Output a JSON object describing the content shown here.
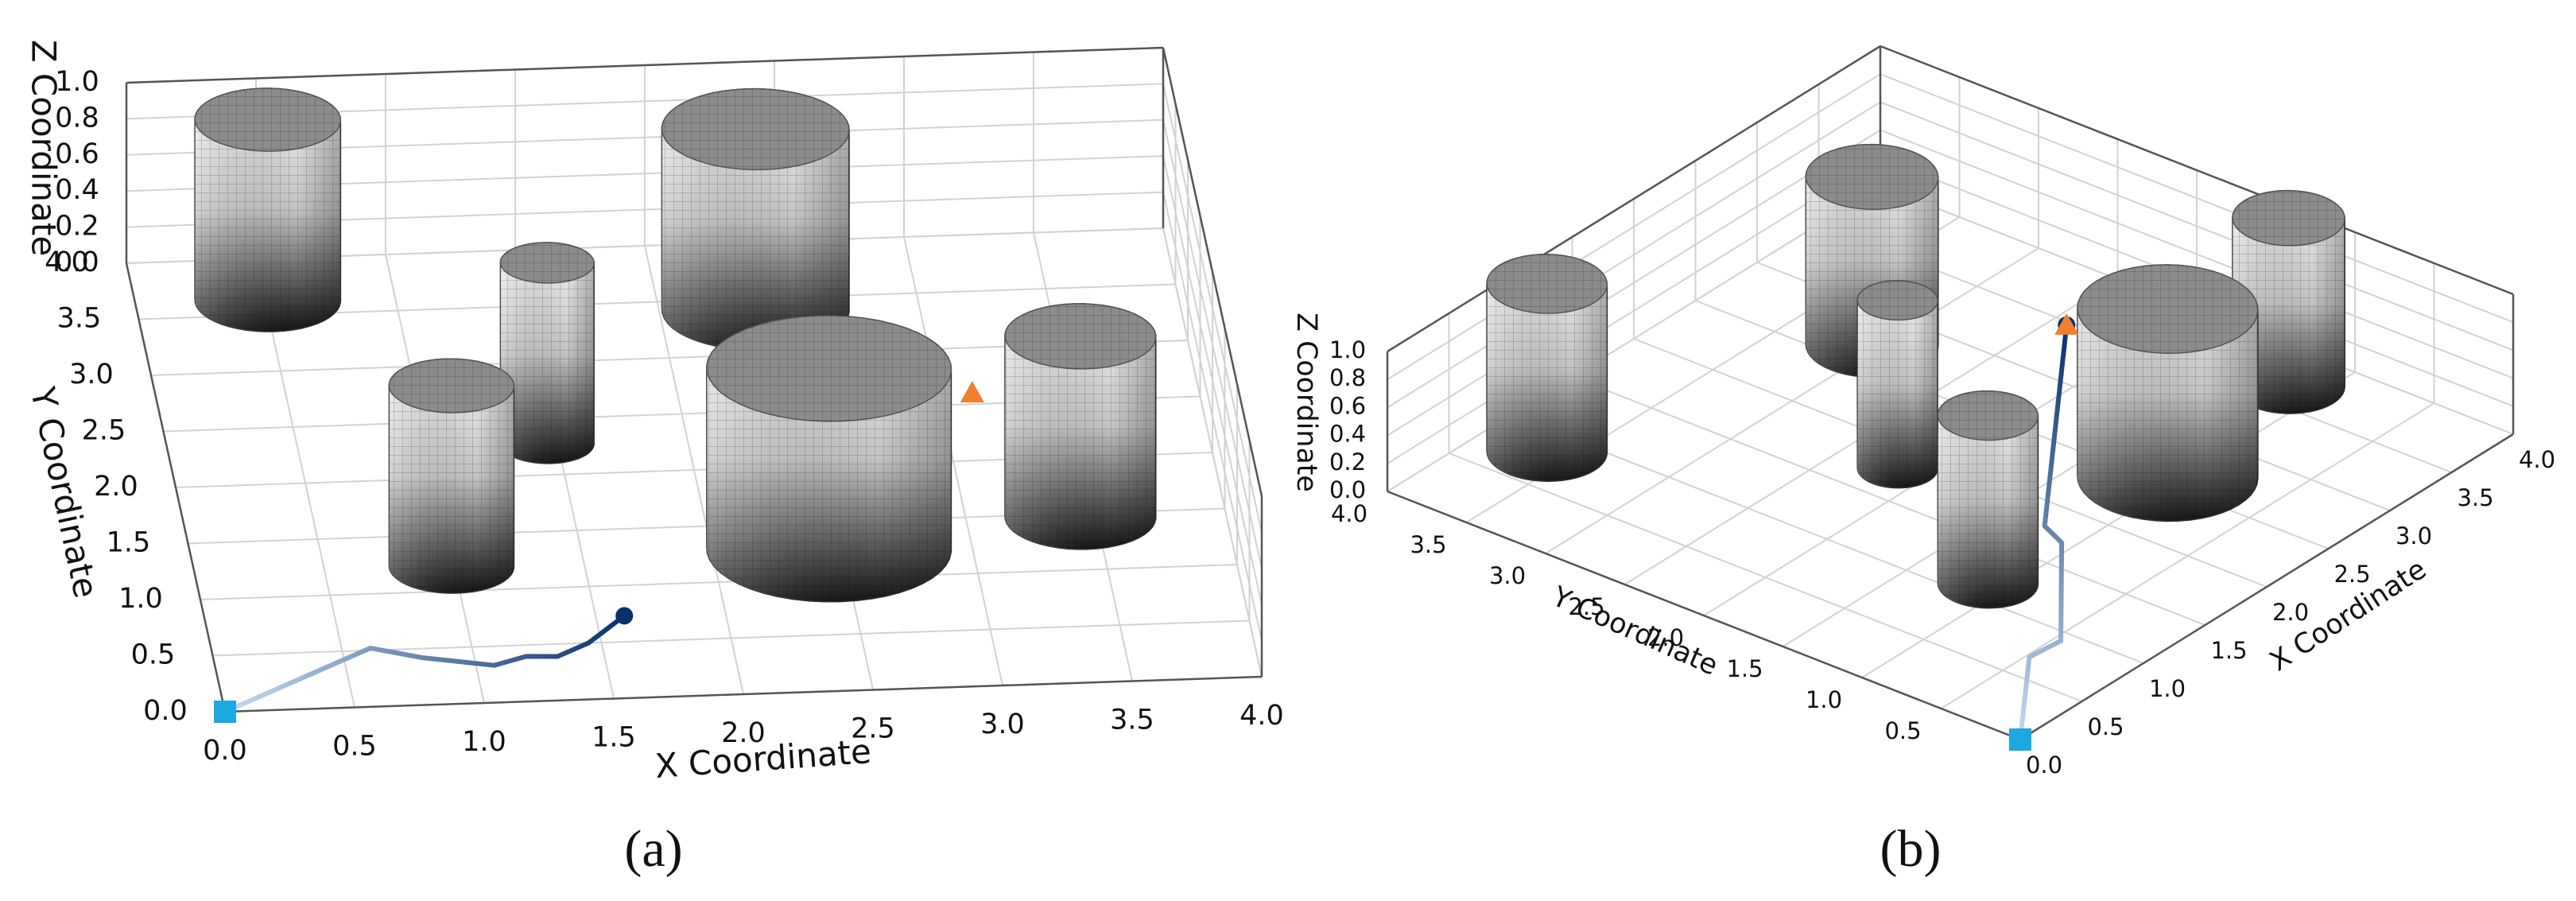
{
  "chart_data": [
    {
      "type": "cylinders3d",
      "caption": "(a)",
      "xlabel": "X Coordinate",
      "ylabel": "Y Coordinate",
      "zlabel": "Z Coordinate",
      "xlim": [
        0,
        4
      ],
      "ylim": [
        0,
        4
      ],
      "zlim": [
        0,
        1
      ],
      "xticks": [
        {
          "value": 0,
          "label": "0.0"
        },
        0.5,
        {
          "value": 1,
          "label": "1.0"
        },
        1.5,
        {
          "value": 2,
          "label": "2.0"
        },
        2.5,
        {
          "value": 3,
          "label": "3.0"
        },
        3.5,
        {
          "value": 4,
          "label": "4.0"
        }
      ],
      "yticks": [
        {
          "value": 0,
          "label": "0.0"
        },
        0.5,
        {
          "value": 1,
          "label": "1.0"
        },
        1.5,
        {
          "value": 2,
          "label": "2.0"
        },
        2.5,
        {
          "value": 3,
          "label": "3.0"
        },
        3.5,
        {
          "value": 4,
          "label": "4.0"
        }
      ],
      "zticks": [
        {
          "value": 0,
          "label": "0.0"
        },
        0.2,
        0.4,
        0.6,
        0.8,
        {
          "value": 1,
          "label": "1.0"
        }
      ],
      "grid": true,
      "obstacles": [
        {
          "x": 0.51,
          "y": 3.63,
          "r": 0.28,
          "height": 1
        },
        {
          "x": 1.46,
          "y": 2.28,
          "r": 0.18,
          "height": 1
        },
        {
          "x": 0.99,
          "y": 1.22,
          "r": 0.24,
          "height": 1
        },
        {
          "x": 2.37,
          "y": 3.4,
          "r": 0.36,
          "height": 1
        },
        {
          "x": 2.45,
          "y": 1.26,
          "r": 0.47,
          "height": 1
        },
        {
          "x": 3.44,
          "y": 1.47,
          "r": 0.29,
          "height": 1
        }
      ],
      "path": {
        "x": [
          0,
          0.61,
          0.8,
          1.07,
          1.2,
          1.32,
          1.45,
          1.61
        ],
        "y": [
          0,
          0.52,
          0.42,
          0.33,
          0.4,
          0.39,
          0.5,
          0.73
        ]
      },
      "path_colors": [
        "#c6dbef",
        "#08306b"
      ],
      "start": {
        "x": 0,
        "y": 0,
        "color": "#1ba9e0"
      },
      "goal": {
        "x": 3.13,
        "y": 2.6,
        "color": "#f07f2e"
      }
    },
    {
      "type": "cylinders3d",
      "caption": "(b)",
      "xlabel": "X Coordinate",
      "ylabel": "Y Coordinate",
      "zlabel": "Z Coordinate",
      "xlim": [
        0,
        4
      ],
      "ylim": [
        0,
        4
      ],
      "zlim": [
        0,
        1
      ],
      "xticks": [
        {
          "value": 0,
          "label": "0.0"
        },
        0.5,
        {
          "value": 1,
          "label": "1.0"
        },
        1.5,
        {
          "value": 2,
          "label": "2.0"
        },
        2.5,
        {
          "value": 3,
          "label": "3.0"
        },
        3.5,
        {
          "value": 4,
          "label": "4.0"
        }
      ],
      "yticks": [
        0.5,
        {
          "value": 1,
          "label": "1.0"
        },
        1.5,
        {
          "value": 2,
          "label": "2.0"
        },
        2.5,
        {
          "value": 3,
          "label": "3.0"
        },
        3.5,
        {
          "value": 4,
          "label": "4.0"
        }
      ],
      "zticks": [
        {
          "value": 0,
          "label": "0.0"
        },
        0.2,
        0.4,
        0.6,
        0.8,
        {
          "value": 1,
          "label": "1.0"
        }
      ],
      "grid": true,
      "obstacles": [
        {
          "x": 0.82,
          "y": 3.63,
          "r": 0.3,
          "height": 1.2
        },
        {
          "x": 2.7,
          "y": 3.04,
          "r": 0.33,
          "height": 1.2
        },
        {
          "x": 1.79,
          "y": 2.17,
          "r": 0.2,
          "height": 1.2
        },
        {
          "x": 1.15,
          "y": 1.1,
          "r": 0.25,
          "height": 1.2
        },
        {
          "x": 2.57,
          "y": 1.07,
          "r": 0.45,
          "height": 1.2
        },
        {
          "x": 3.68,
          "y": 1.17,
          "r": 0.28,
          "height": 1.2
        }
      ],
      "path": {
        "x": [
          0,
          0.69,
          0.92,
          1.71,
          1.79,
          3.47
        ],
        "y": [
          0,
          0.48,
          0.46,
          1.07,
          1.24,
          2.41
        ]
      },
      "path_colors": [
        "#c6dbef",
        "#08306b"
      ],
      "start": {
        "x": 0,
        "y": 0,
        "color": "#1ba9e0"
      },
      "goal": {
        "x": 3.47,
        "y": 2.41,
        "color": "#f07f2e"
      }
    }
  ]
}
